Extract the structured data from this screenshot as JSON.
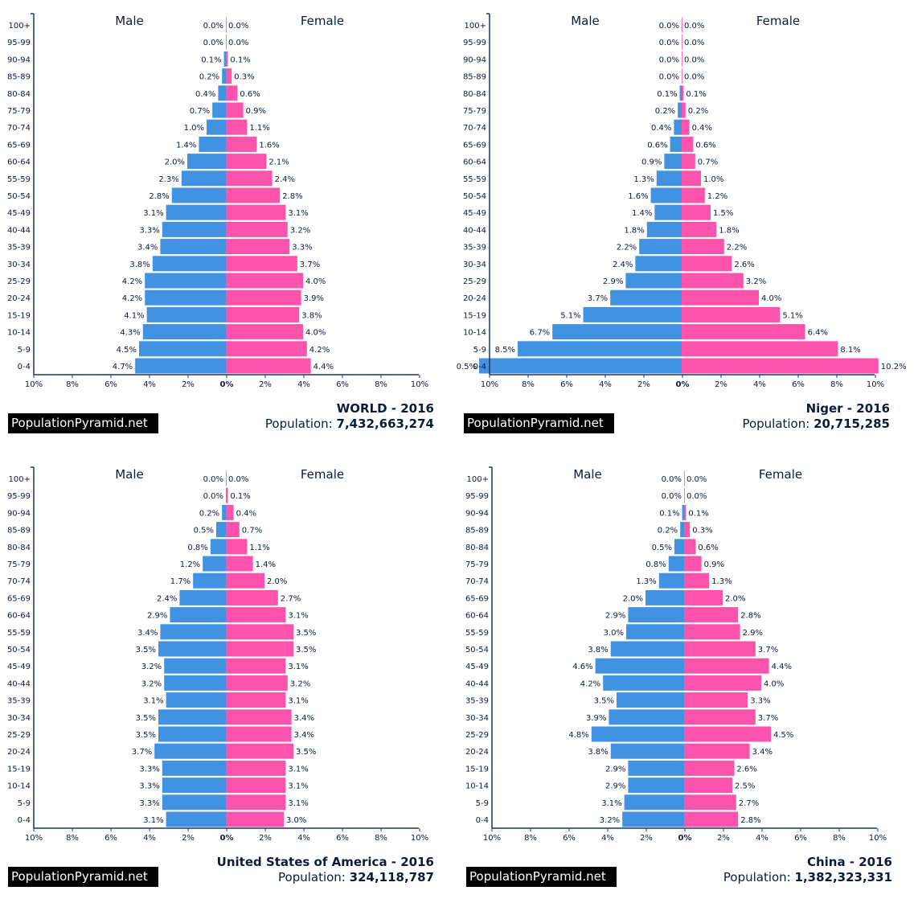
{
  "colors": {
    "male": "#4192e0",
    "female": "#fc54ac",
    "axis": "#1c3566",
    "text": "#0d1b3a"
  },
  "chart_data": [
    {
      "type": "bar",
      "orientation": "horizontal-pyramid",
      "title": "WORLD - 2016",
      "population_label": "Population:",
      "population": "7,432,663,274",
      "logo": "PopulationPyramid.net",
      "male_label": "Male",
      "female_label": "Female",
      "ages": [
        "100+",
        "95-99",
        "90-94",
        "85-89",
        "80-84",
        "75-79",
        "70-74",
        "65-69",
        "60-64",
        "55-59",
        "50-54",
        "45-49",
        "40-44",
        "35-39",
        "30-34",
        "25-29",
        "20-24",
        "15-19",
        "10-14",
        "5-9",
        "0-4"
      ],
      "xticks": [
        "10%",
        "8%",
        "6%",
        "4%",
        "2%",
        "0%",
        "2%",
        "4%",
        "6%",
        "8%",
        "10%"
      ],
      "xlim": [
        -10,
        10
      ],
      "series": [
        {
          "name": "Male",
          "values": [
            0.0,
            0.0,
            0.1,
            0.2,
            0.4,
            0.7,
            1.0,
            1.4,
            2.0,
            2.3,
            2.8,
            3.1,
            3.3,
            3.4,
            3.8,
            4.2,
            4.2,
            4.1,
            4.3,
            4.5,
            4.7
          ]
        },
        {
          "name": "Female",
          "values": [
            0.0,
            0.0,
            0.1,
            0.3,
            0.6,
            0.9,
            1.1,
            1.6,
            2.1,
            2.4,
            2.8,
            3.1,
            3.2,
            3.3,
            3.7,
            4.0,
            3.9,
            3.8,
            4.0,
            4.2,
            4.4
          ]
        }
      ]
    },
    {
      "type": "bar",
      "orientation": "horizontal-pyramid",
      "title": "Niger - 2016",
      "population_label": "Population:",
      "population": "20,715,285",
      "logo": "PopulationPyramid.net",
      "male_label": "Male",
      "female_label": "Female",
      "ages": [
        "100+",
        "95-99",
        "90-94",
        "85-89",
        "80-84",
        "75-79",
        "70-74",
        "65-69",
        "60-64",
        "55-59",
        "50-54",
        "45-49",
        "40-44",
        "35-39",
        "30-34",
        "25-29",
        "20-24",
        "15-19",
        "10-14",
        "5-9",
        "0-4"
      ],
      "xticks": [
        "10%",
        "8%",
        "6%",
        "4%",
        "2%",
        "0%",
        "2%",
        "4%",
        "6%",
        "8%",
        "10%"
      ],
      "xlim": [
        -10,
        10
      ],
      "series": [
        {
          "name": "Male",
          "values": [
            0.0,
            0.0,
            0.0,
            0.0,
            0.1,
            0.2,
            0.4,
            0.6,
            0.9,
            1.3,
            1.6,
            1.4,
            1.8,
            2.2,
            2.4,
            2.9,
            3.7,
            5.1,
            6.7,
            8.5,
            10.5
          ]
        },
        {
          "name": "Female",
          "values": [
            0.0,
            0.0,
            0.0,
            0.0,
            0.1,
            0.2,
            0.4,
            0.6,
            0.7,
            1.0,
            1.2,
            1.5,
            1.8,
            2.2,
            2.6,
            3.2,
            4.0,
            5.1,
            6.4,
            8.1,
            10.2
          ]
        }
      ]
    },
    {
      "type": "bar",
      "orientation": "horizontal-pyramid",
      "title": "United States of America - 2016",
      "population_label": "Population:",
      "population": "324,118,787",
      "logo": "PopulationPyramid.net",
      "male_label": "Male",
      "female_label": "Female",
      "ages": [
        "100+",
        "95-99",
        "90-94",
        "85-89",
        "80-84",
        "75-79",
        "70-74",
        "65-69",
        "60-64",
        "55-59",
        "50-54",
        "45-49",
        "40-44",
        "35-39",
        "30-34",
        "25-29",
        "20-24",
        "15-19",
        "10-14",
        "5-9",
        "0-4"
      ],
      "xticks": [
        "10%",
        "8%",
        "6%",
        "4%",
        "2%",
        "0%",
        "2%",
        "4%",
        "6%",
        "8%",
        "10%"
      ],
      "xlim": [
        -10,
        10
      ],
      "series": [
        {
          "name": "Male",
          "values": [
            0.0,
            0.0,
            0.2,
            0.5,
            0.8,
            1.2,
            1.7,
            2.4,
            2.9,
            3.4,
            3.5,
            3.2,
            3.2,
            3.1,
            3.5,
            3.5,
            3.7,
            3.3,
            3.3,
            3.3,
            3.1
          ]
        },
        {
          "name": "Female",
          "values": [
            0.0,
            0.1,
            0.4,
            0.7,
            1.1,
            1.4,
            2.0,
            2.7,
            3.1,
            3.5,
            3.5,
            3.1,
            3.2,
            3.1,
            3.4,
            3.4,
            3.5,
            3.1,
            3.1,
            3.1,
            3.0
          ]
        }
      ]
    },
    {
      "type": "bar",
      "orientation": "horizontal-pyramid",
      "title": "China - 2016",
      "population_label": "Population:",
      "population": "1,382,323,331",
      "logo": "PopulationPyramid.net",
      "male_label": "Male",
      "female_label": "Female",
      "ages": [
        "100+",
        "95-99",
        "90-94",
        "85-89",
        "80-84",
        "75-79",
        "70-74",
        "65-69",
        "60-64",
        "55-59",
        "50-54",
        "45-49",
        "40-44",
        "35-39",
        "30-34",
        "25-29",
        "20-24",
        "15-19",
        "10-14",
        "5-9",
        "0-4"
      ],
      "xticks": [
        "10%",
        "8%",
        "6%",
        "4%",
        "2%",
        "0%",
        "2%",
        "4%",
        "6%",
        "8%",
        "10%"
      ],
      "xlim": [
        -10,
        10
      ],
      "series": [
        {
          "name": "Male",
          "values": [
            0.0,
            0.0,
            0.1,
            0.2,
            0.5,
            0.8,
            1.3,
            2.0,
            2.9,
            3.0,
            3.8,
            4.6,
            4.2,
            3.5,
            3.9,
            4.8,
            3.8,
            2.9,
            2.9,
            3.1,
            3.2
          ]
        },
        {
          "name": "Female",
          "values": [
            0.0,
            0.0,
            0.1,
            0.3,
            0.6,
            0.9,
            1.3,
            2.0,
            2.8,
            2.9,
            3.7,
            4.4,
            4.0,
            3.3,
            3.7,
            4.5,
            3.4,
            2.6,
            2.5,
            2.7,
            2.8
          ]
        }
      ]
    }
  ]
}
